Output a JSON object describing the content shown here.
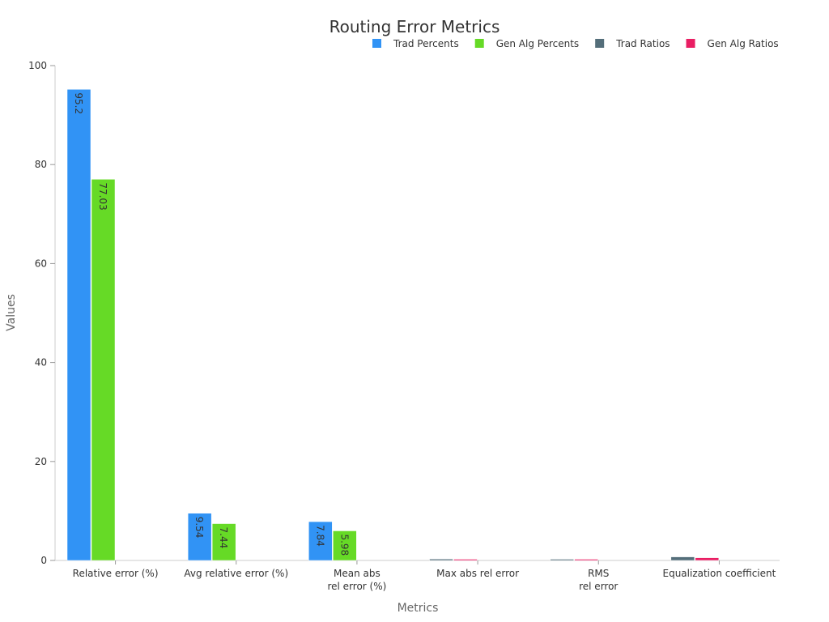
{
  "chart_data": {
    "type": "bar",
    "title": "Routing Error Metrics",
    "xlabel": "Metrics",
    "ylabel": "Values",
    "ylim": [
      0,
      100
    ],
    "yticks": [
      0,
      20,
      40,
      60,
      80,
      100
    ],
    "legend_position": "top-right",
    "grid": false,
    "categories": [
      [
        "Relative error (%)"
      ],
      [
        "Avg relative error (%)"
      ],
      [
        "Mean abs",
        "rel error (%)"
      ],
      [
        "Max abs rel error"
      ],
      [
        "RMS",
        "rel error"
      ],
      [
        "Equalization coefficient"
      ]
    ],
    "series": [
      {
        "name": "Trad Percents",
        "color": "#3193f5",
        "values": [
          95.2,
          9.54,
          7.84,
          null,
          null,
          null
        ],
        "labels": [
          "95.2",
          "9.54",
          "7.84",
          "",
          "",
          ""
        ]
      },
      {
        "name": "Gen Alg Percents",
        "color": "#66da26",
        "values": [
          77.03,
          7.44,
          5.98,
          null,
          null,
          null
        ],
        "labels": [
          "77.03",
          "7.44",
          "5.98",
          "",
          "",
          ""
        ]
      },
      {
        "name": "Trad Ratios",
        "color": "#546e7a",
        "values": [
          null,
          null,
          null,
          0.28,
          0.12,
          0.72
        ],
        "labels": [
          "",
          "",
          "",
          "",
          "",
          ""
        ]
      },
      {
        "name": "Gen Alg Ratios",
        "color": "#e91e63",
        "values": [
          null,
          null,
          null,
          0.1,
          0.05,
          0.55
        ],
        "labels": [
          "",
          "",
          "",
          "",
          "",
          ""
        ]
      }
    ]
  }
}
